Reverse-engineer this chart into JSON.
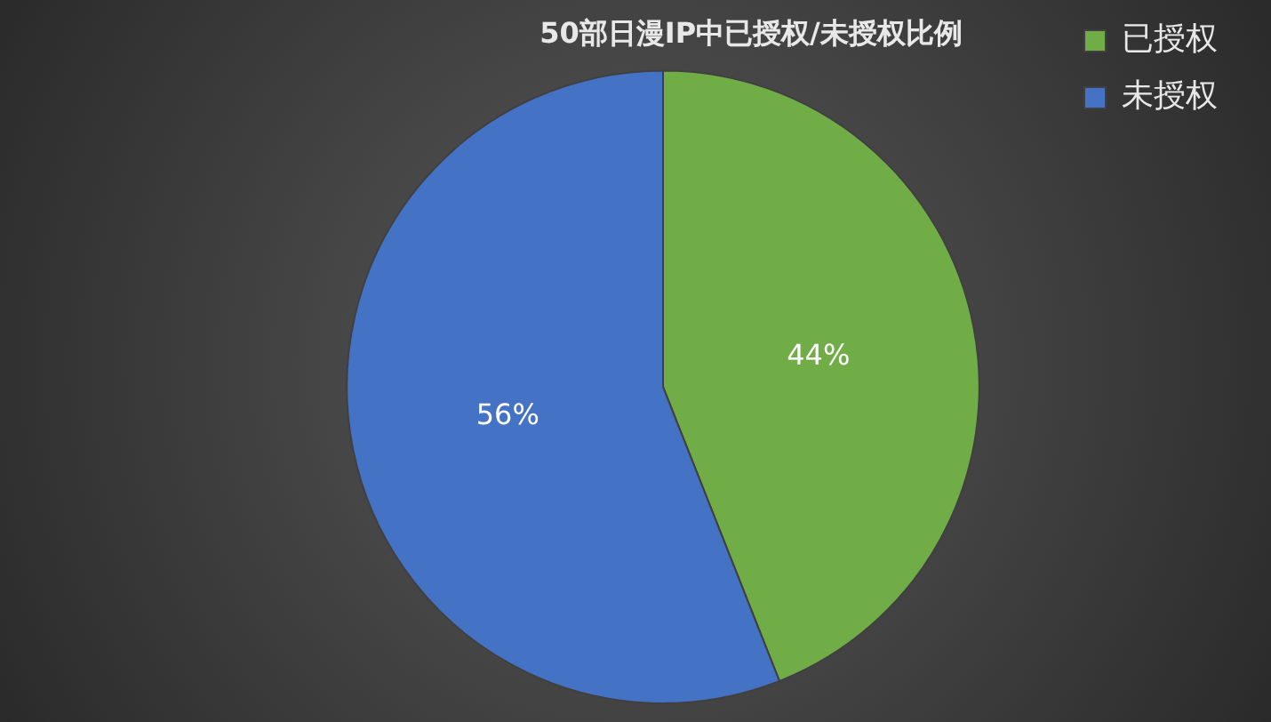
{
  "chart_data": {
    "type": "pie",
    "title": "50部日漫IP中已授权/未授权比例",
    "categories": [
      "已授权",
      "未授权"
    ],
    "values": [
      44,
      56
    ],
    "colors": [
      "#70ad47",
      "#4472c4"
    ],
    "value_labels": [
      "44%",
      "56%"
    ],
    "legend": "right"
  }
}
